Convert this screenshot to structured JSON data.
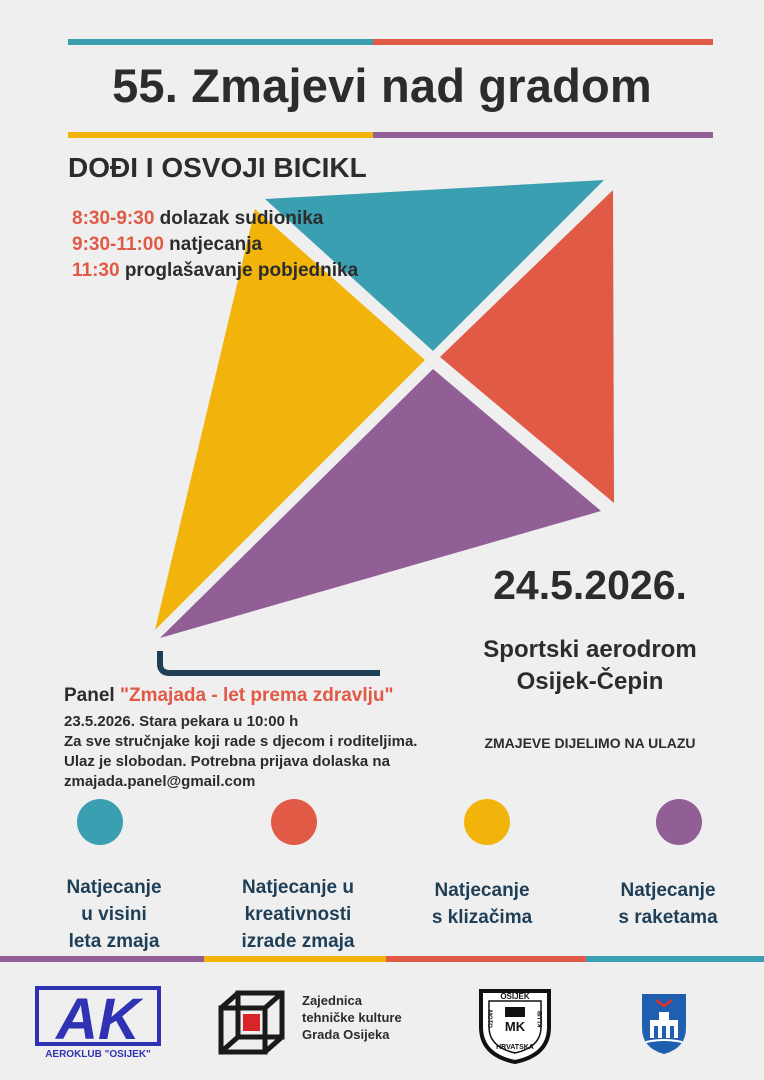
{
  "colors": {
    "teal": "#3a9fb0",
    "red": "#e05a45",
    "yellow": "#f2b40a",
    "purple": "#915e96",
    "text_dark": "#2c2c2c",
    "text_navy": "#1f3f57",
    "aeroklub_blue": "#2f33b3"
  },
  "title": "55. Zmajevi nad gradom",
  "tagline": "DOĐI I OSVOJI  BICIKL",
  "schedule": [
    {
      "time": "8:30-9:30",
      "text": " dolazak sudionika"
    },
    {
      "time": "9:30-11:00",
      "text": " natjecanja"
    },
    {
      "time": "11:30",
      "text": " proglašavanje pobjednika"
    }
  ],
  "date": "24.5.2026.",
  "venue": {
    "line1": "Sportski aerodrom",
    "line2": "Osijek-Čepin"
  },
  "share_note": "ZMAJEVE DIJELIMO NA ULAZU",
  "panel": {
    "label": "Panel ",
    "title": "\"Zmajada - let prema zdravlju\"",
    "lines": [
      "23.5.2026. Stara pekara u 10:00 h",
      "Za sve stručnjake koji rade s djecom i roditeljima.",
      "Ulaz je slobodan. Potrebna prijava dolaska na",
      "zmajada.panel@gmail.com"
    ]
  },
  "competitions": [
    {
      "color": "teal",
      "lines": [
        "Natjecanje",
        "u visini",
        "leta zmaja"
      ]
    },
    {
      "color": "red",
      "lines": [
        "Natjecanje u",
        "kreativnosti",
        "izrade zmaja"
      ]
    },
    {
      "color": "yellow",
      "lines": [
        "Natjecanje",
        "s klizačima"
      ]
    },
    {
      "color": "purple",
      "lines": [
        "Natjecanje",
        "s raketama"
      ]
    }
  ],
  "logos": {
    "aeroklub": {
      "letters": "AK",
      "name": "AEROKLUB \"OSIJEK\""
    },
    "ztk": {
      "lines": [
        "Zajednica",
        "tehničke kulture",
        "Grada Osijeka"
      ]
    },
    "moto_klub": {
      "top": "OSIJEK",
      "left": "MOTO",
      "right": "KLUB",
      "bottom": "HRVATSKA",
      "center": "MK"
    },
    "coat_of_arms": "osijek-coat-of-arms-icon"
  }
}
